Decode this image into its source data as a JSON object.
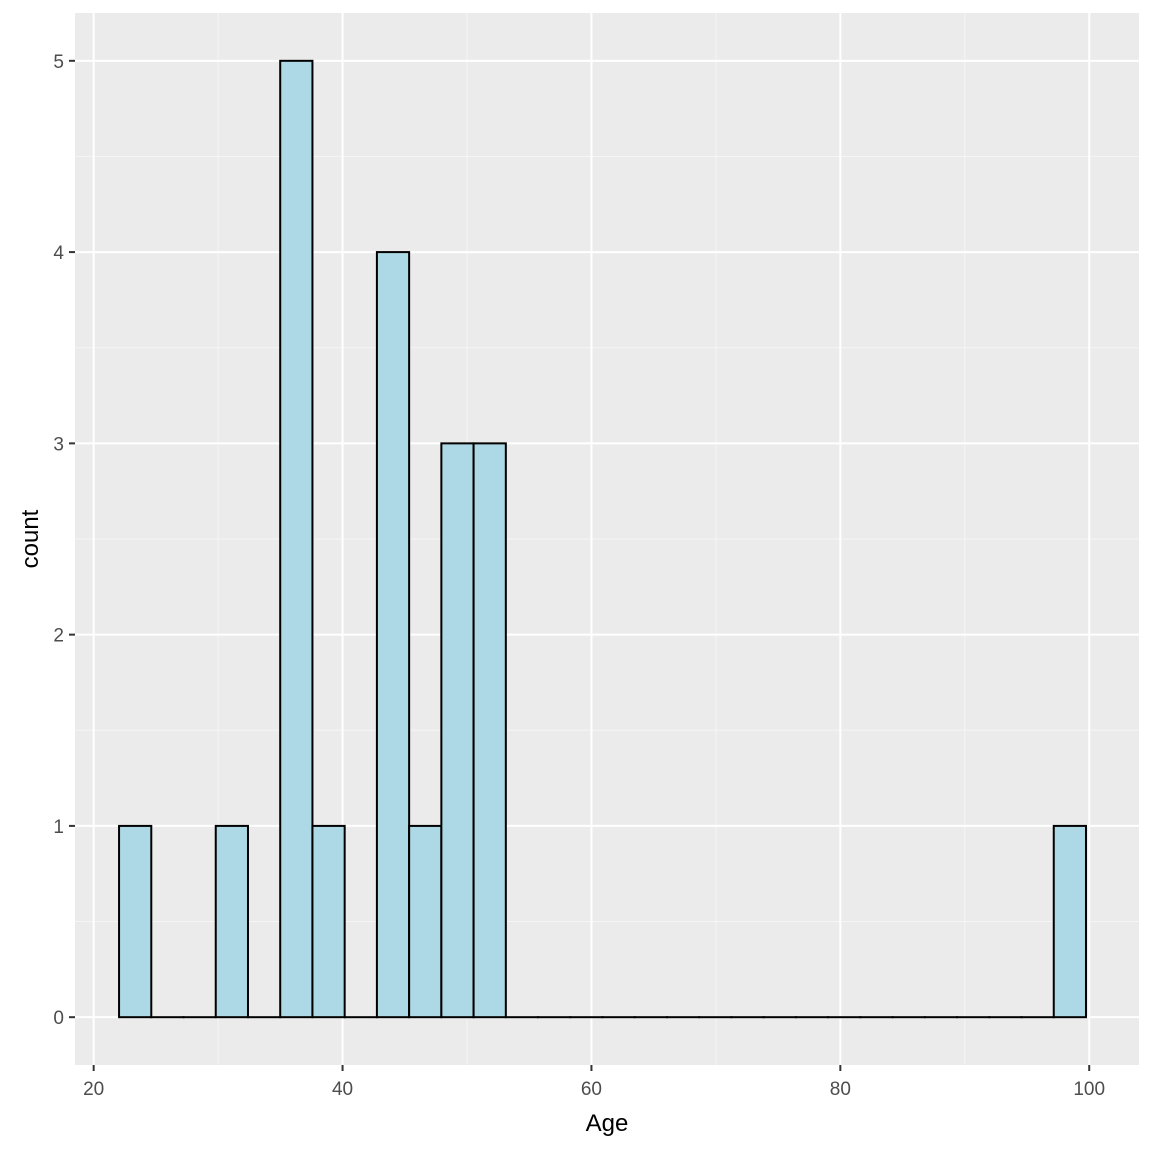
{
  "chart_data": {
    "type": "bar",
    "subtype": "histogram",
    "title": "",
    "xlabel": "Age",
    "ylabel": "count",
    "xlim": [
      18.5,
      104
    ],
    "ylim": [
      -0.25,
      5.25
    ],
    "x_ticks": [
      20,
      40,
      60,
      80,
      100
    ],
    "y_ticks": [
      0,
      1,
      2,
      3,
      4,
      5
    ],
    "grid": true,
    "legend": "none",
    "bin_start": 22.04,
    "bin_width": 2.59,
    "counts": [
      1,
      0,
      0,
      1,
      0,
      5,
      1,
      0,
      4,
      1,
      3,
      3,
      0,
      0,
      0,
      0,
      0,
      0,
      0,
      0,
      0,
      0,
      0,
      0,
      0,
      0,
      0,
      0,
      0,
      1
    ],
    "colors": {
      "panel_background": "#ebebeb",
      "grid_major": "#ffffff",
      "grid_minor": "#f5f5f5",
      "bar_fill": "#add8e6",
      "bar_outline": "#000000"
    }
  }
}
